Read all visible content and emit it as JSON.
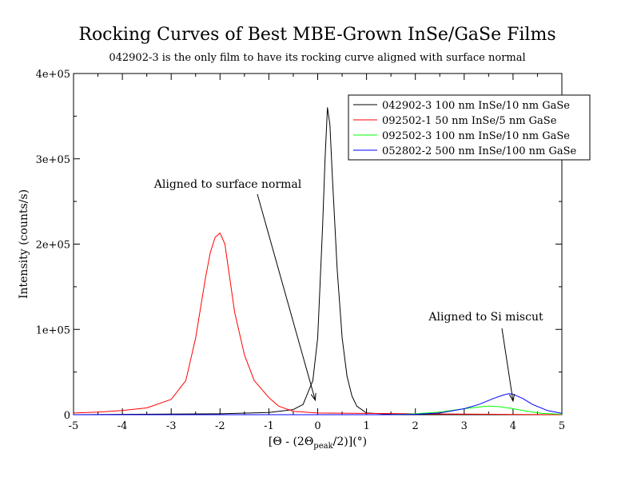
{
  "chart_data": {
    "type": "line",
    "title": "Rocking Curves of Best MBE-Grown InSe/GaSe Films",
    "subtitle": "042902-3 is the only film to have its rocking curve aligned with surface normal",
    "xlabel": {
      "pre": "[Θ  - (2Θ",
      "sub": "peak",
      "post": "/2)](°)"
    },
    "ylabel": "Intensity (counts/s)",
    "xlim": [
      -5,
      5
    ],
    "ylim": [
      0,
      400000
    ],
    "xticks": [
      "-5",
      "-4",
      "-3",
      "-2",
      "-1",
      "0",
      "1",
      "2",
      "3",
      "4",
      "5"
    ],
    "yticks": [
      "0",
      "1e+05",
      "2e+05",
      "3e+05",
      "4e+05"
    ],
    "legend_position": "top-right",
    "series": [
      {
        "name": "042902-3 100 nm InSe/10 nm GaSe",
        "color": "#000000",
        "x": [
          -5,
          -2,
          -1,
          -0.5,
          -0.3,
          -0.1,
          0,
          0.1,
          0.15,
          0.2,
          0.25,
          0.3,
          0.4,
          0.5,
          0.6,
          0.7,
          0.8,
          1.0,
          1.5,
          2,
          3,
          5
        ],
        "y": [
          0,
          1000,
          2500,
          6000,
          12000,
          40000,
          90000,
          220000,
          300000,
          360000,
          340000,
          280000,
          170000,
          90000,
          45000,
          22000,
          10000,
          2000,
          500,
          0,
          0,
          0
        ]
      },
      {
        "name": "092502-1 50 nm InSe/5 nm GaSe",
        "color": "#ff0000",
        "x": [
          -5,
          -4.5,
          -4,
          -3.5,
          -3,
          -2.7,
          -2.5,
          -2.3,
          -2.2,
          -2.1,
          -2,
          -1.9,
          -1.8,
          -1.7,
          -1.5,
          -1.3,
          -1,
          -0.8,
          -0.5,
          0,
          1,
          2,
          5
        ],
        "y": [
          2000,
          3000,
          5000,
          8000,
          18000,
          40000,
          90000,
          160000,
          190000,
          208000,
          213000,
          200000,
          160000,
          120000,
          70000,
          40000,
          20000,
          10000,
          4000,
          2000,
          1500,
          1000,
          0
        ]
      },
      {
        "name": "092502-3 100 nm InSe/10 nm GaSe",
        "color": "#00ff00",
        "x": [
          -5,
          1.5,
          2,
          2.5,
          3,
          3.3,
          3.5,
          3.7,
          4,
          4.3,
          4.6,
          5
        ],
        "y": [
          0,
          0,
          1000,
          3000,
          7000,
          9000,
          10000,
          9500,
          7000,
          4000,
          1500,
          500
        ]
      },
      {
        "name": "052802-2 500 nm InSe/100 nm GaSe",
        "color": "#0000ff",
        "x": [
          -5,
          1.5,
          2,
          2.5,
          3,
          3.3,
          3.6,
          3.8,
          3.9,
          4,
          4.2,
          4.4,
          4.7,
          5
        ],
        "y": [
          0,
          0,
          500,
          2000,
          7000,
          12000,
          19000,
          23000,
          24500,
          24000,
          19000,
          12000,
          5000,
          1500
        ]
      }
    ],
    "annotations": [
      {
        "text": "Aligned to surface normal",
        "point_to": [
          -0.05,
          17000
        ]
      },
      {
        "text": "Aligned to Si miscut",
        "point_to": [
          4.0,
          16000
        ]
      }
    ]
  }
}
